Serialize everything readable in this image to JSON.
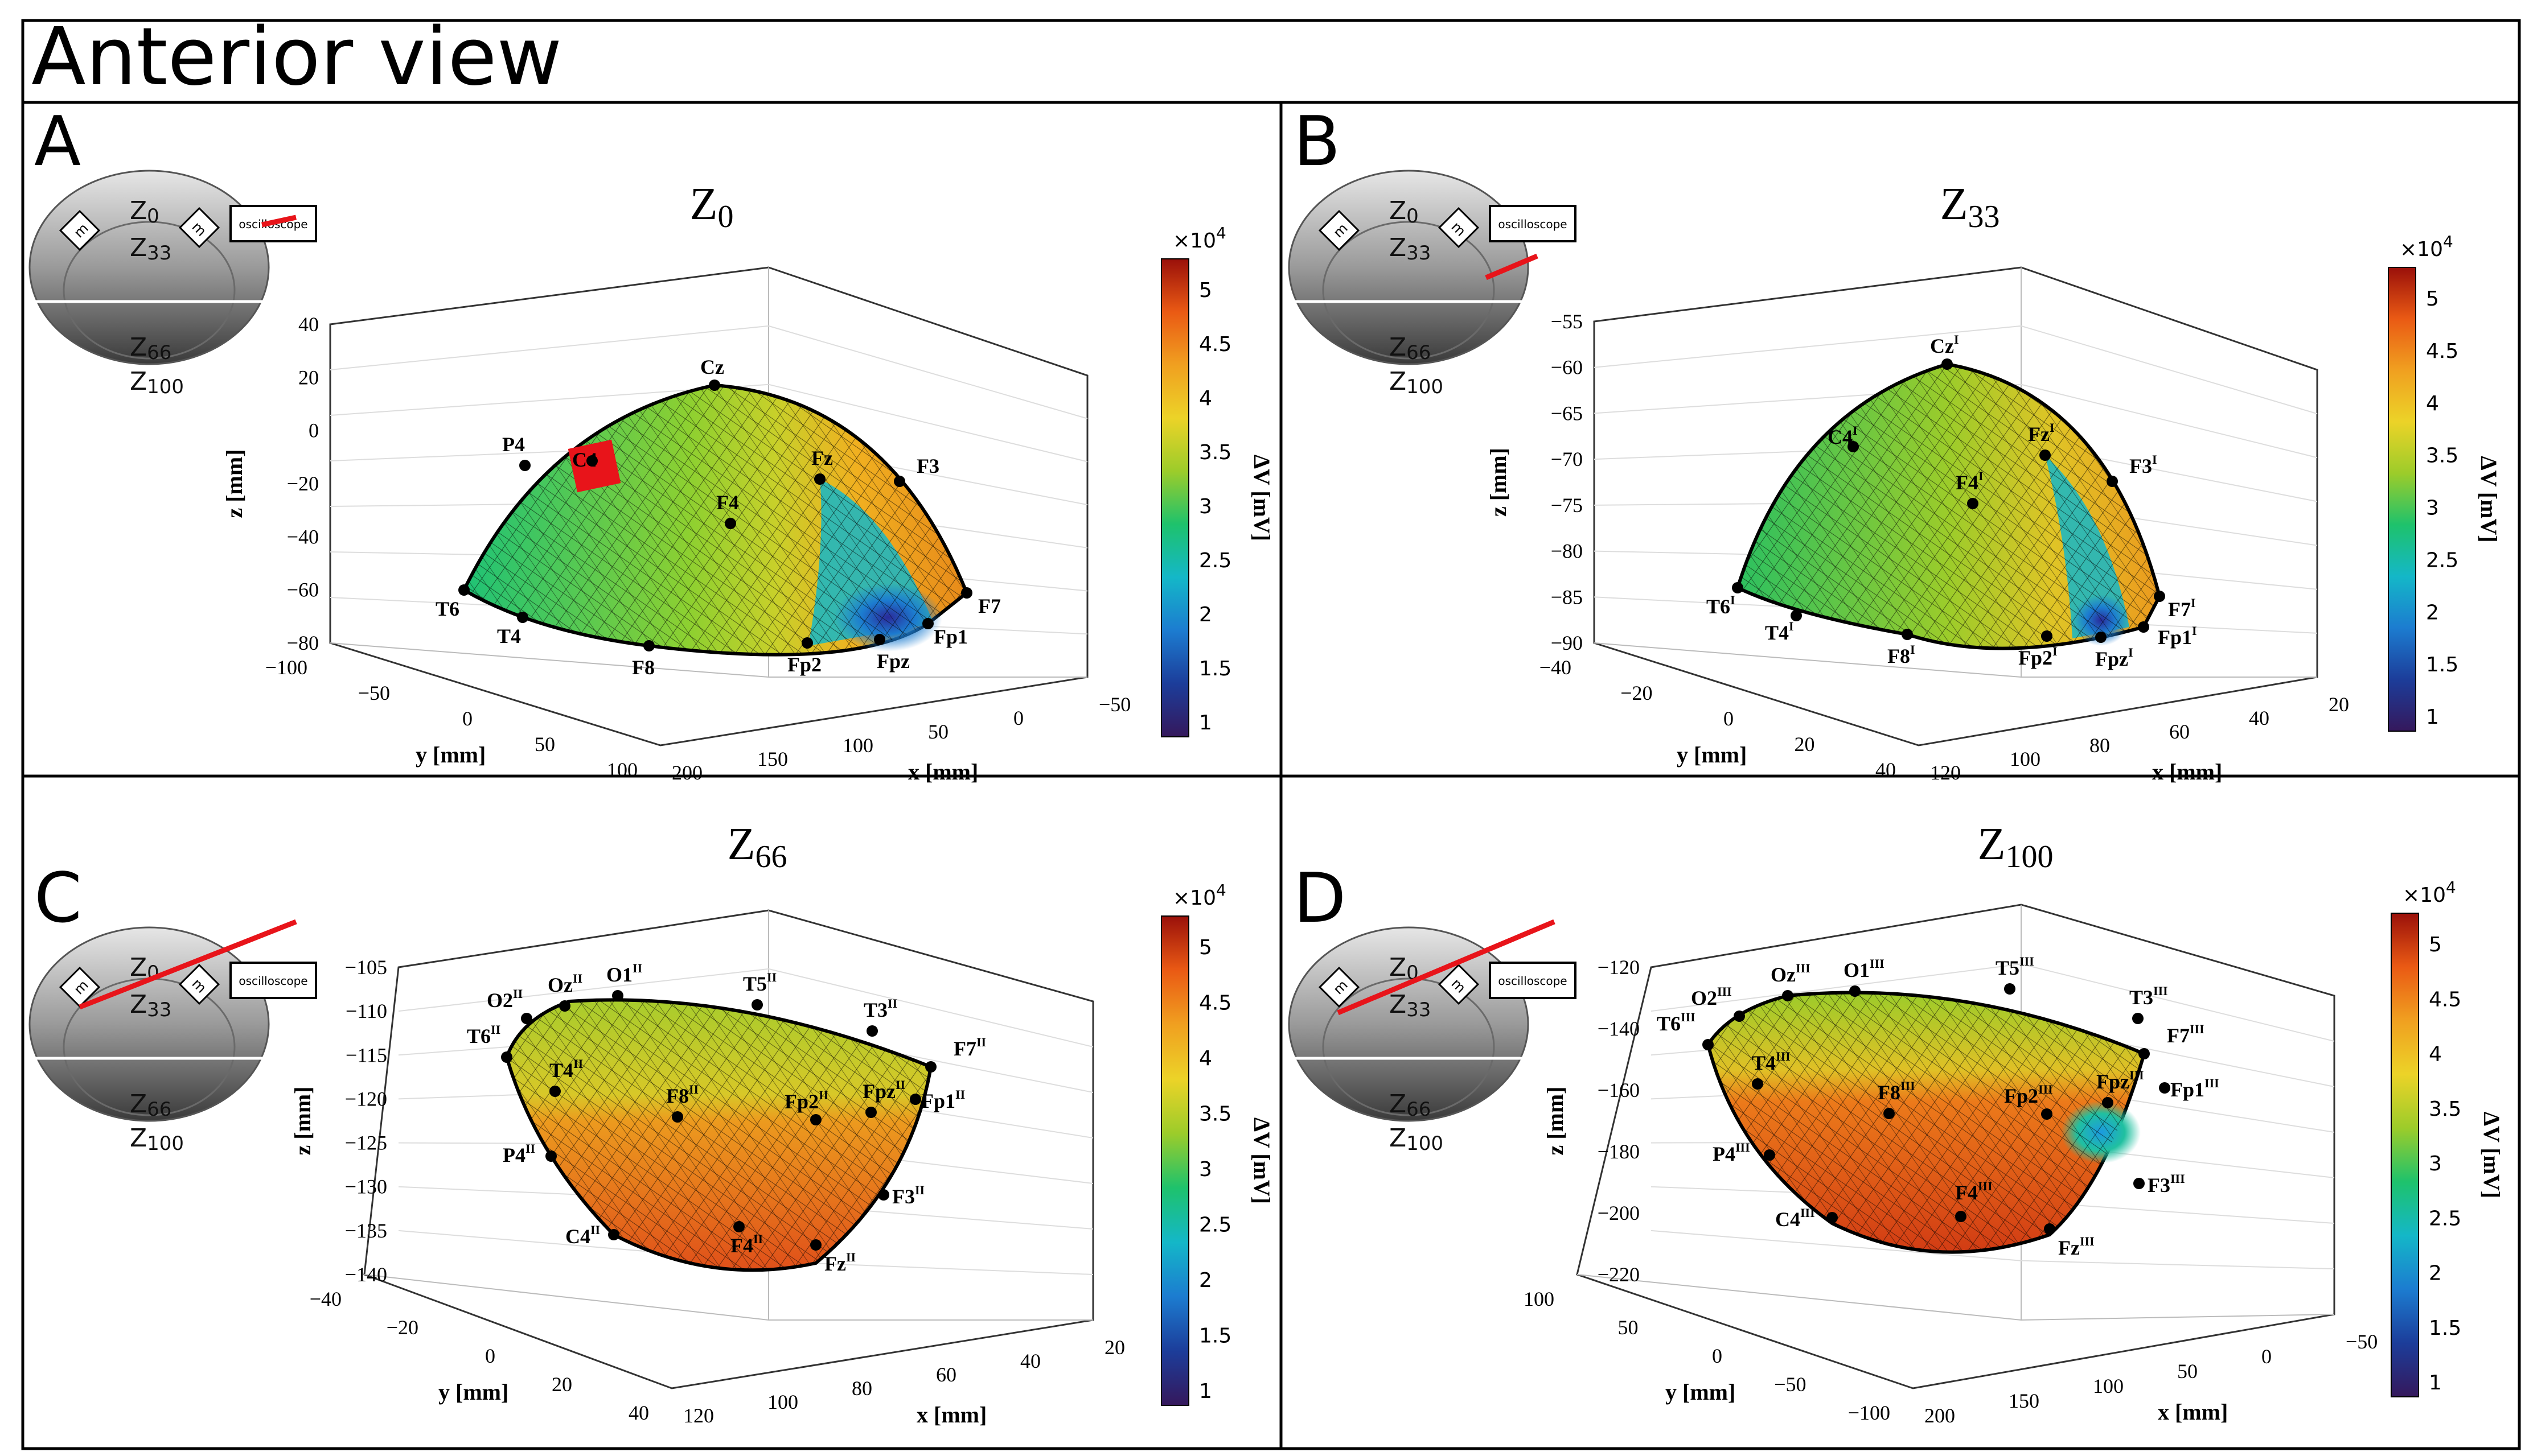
{
  "figure_title": "Anterior view",
  "inset": {
    "layer_labels": [
      "Z",
      "Z",
      "Z",
      "Z"
    ],
    "layer_subs": [
      "0",
      "33",
      "66",
      "100"
    ],
    "box_label": "oscilloscope",
    "electrode_glyph": "m"
  },
  "colorbar": {
    "multiplier_base": "×10",
    "multiplier_exp": "4",
    "label": "ΔV [mV]",
    "ticks": [
      "1",
      "1.5",
      "2",
      "2.5",
      "3",
      "3.5",
      "4",
      "4.5",
      "5"
    ],
    "colors": [
      "#35185c",
      "#1c3d9a",
      "#1c7cd0",
      "#14b7c8",
      "#1ec26c",
      "#9ccc2a",
      "#ecd328",
      "#f0a020",
      "#ea5a14",
      "#9a100a"
    ]
  },
  "chart_data": [
    {
      "panel": "A",
      "type": "surface3d",
      "title_base": "Z",
      "title_sub": "0",
      "xlabel": "x [mm]",
      "ylabel": "y [mm]",
      "zlabel": "z [mm]",
      "x_ticks": [
        "200",
        "150",
        "100",
        "50",
        "0",
        "−50"
      ],
      "y_ticks": [
        "−100",
        "−50",
        "0",
        "50",
        "100"
      ],
      "z_ticks": [
        "40",
        "20",
        "0",
        "−20",
        "−40",
        "−60",
        "−80"
      ],
      "shape": "dome",
      "electrodes": [
        {
          "base": "Cz",
          "sup": ""
        },
        {
          "base": "P4",
          "sup": ""
        },
        {
          "base": "C4",
          "sup": ""
        },
        {
          "base": "Fz",
          "sup": ""
        },
        {
          "base": "F3",
          "sup": ""
        },
        {
          "base": "F4",
          "sup": ""
        },
        {
          "base": "T6",
          "sup": ""
        },
        {
          "base": "T4",
          "sup": ""
        },
        {
          "base": "F8",
          "sup": ""
        },
        {
          "base": "Fp2",
          "sup": ""
        },
        {
          "base": "Fpz",
          "sup": ""
        },
        {
          "base": "Fp1",
          "sup": ""
        },
        {
          "base": "F7",
          "sup": ""
        }
      ]
    },
    {
      "panel": "B",
      "type": "surface3d",
      "title_base": "Z",
      "title_sub": "33",
      "xlabel": "x [mm]",
      "ylabel": "y [mm]",
      "zlabel": "z [mm]",
      "x_ticks": [
        "120",
        "100",
        "80",
        "60",
        "40",
        "20"
      ],
      "y_ticks": [
        "−40",
        "−20",
        "0",
        "20",
        "40"
      ],
      "z_ticks": [
        "−55",
        "−60",
        "−65",
        "−70",
        "−75",
        "−80",
        "−85",
        "−90"
      ],
      "shape": "dome",
      "electrodes": [
        {
          "base": "Cz",
          "sup": "I"
        },
        {
          "base": "C4",
          "sup": "I"
        },
        {
          "base": "Fz",
          "sup": "I"
        },
        {
          "base": "F3",
          "sup": "I"
        },
        {
          "base": "F4",
          "sup": "I"
        },
        {
          "base": "T6",
          "sup": "I"
        },
        {
          "base": "T4",
          "sup": "I"
        },
        {
          "base": "F8",
          "sup": "I"
        },
        {
          "base": "Fp2",
          "sup": "I"
        },
        {
          "base": "Fpz",
          "sup": "I"
        },
        {
          "base": "Fp1",
          "sup": "I"
        },
        {
          "base": "F7",
          "sup": "I"
        }
      ]
    },
    {
      "panel": "C",
      "type": "surface3d",
      "title_base": "Z",
      "title_sub": "66",
      "xlabel": "x [mm]",
      "ylabel": "y [mm]",
      "zlabel": "z [mm]",
      "x_ticks": [
        "120",
        "100",
        "80",
        "60",
        "40",
        "20"
      ],
      "y_ticks": [
        "−40",
        "−20",
        "0",
        "20",
        "40"
      ],
      "z_ticks": [
        "−105",
        "−110",
        "−115",
        "−120",
        "−125",
        "−130",
        "−135",
        "−140"
      ],
      "shape": "bowl",
      "electrodes": [
        {
          "base": "O2",
          "sup": "II"
        },
        {
          "base": "Oz",
          "sup": "II"
        },
        {
          "base": "O1",
          "sup": "II"
        },
        {
          "base": "T5",
          "sup": "II"
        },
        {
          "base": "T3",
          "sup": "II"
        },
        {
          "base": "F7",
          "sup": "II"
        },
        {
          "base": "T6",
          "sup": "II"
        },
        {
          "base": "T4",
          "sup": "II"
        },
        {
          "base": "F8",
          "sup": "II"
        },
        {
          "base": "Fp2",
          "sup": "II"
        },
        {
          "base": "Fpz",
          "sup": "II"
        },
        {
          "base": "Fp1",
          "sup": "II"
        },
        {
          "base": "P4",
          "sup": "II"
        },
        {
          "base": "F3",
          "sup": "II"
        },
        {
          "base": "C4",
          "sup": "II"
        },
        {
          "base": "F4",
          "sup": "II"
        },
        {
          "base": "Fz",
          "sup": "II"
        }
      ]
    },
    {
      "panel": "D",
      "type": "surface3d",
      "title_base": "Z",
      "title_sub": "100",
      "xlabel": "x [mm]",
      "ylabel": "y [mm]",
      "zlabel": "z [mm]",
      "x_ticks": [
        "200",
        "150",
        "100",
        "50",
        "0",
        "−50"
      ],
      "y_ticks": [
        "100",
        "50",
        "0",
        "−50",
        "−100"
      ],
      "z_ticks": [
        "−120",
        "−140",
        "−160",
        "−180",
        "−200",
        "−220"
      ],
      "shape": "bowl",
      "electrodes": [
        {
          "base": "O2",
          "sup": "III"
        },
        {
          "base": "Oz",
          "sup": "III"
        },
        {
          "base": "O1",
          "sup": "III"
        },
        {
          "base": "T5",
          "sup": "III"
        },
        {
          "base": "T3",
          "sup": "III"
        },
        {
          "base": "F7",
          "sup": "III"
        },
        {
          "base": "T6",
          "sup": "III"
        },
        {
          "base": "T4",
          "sup": "III"
        },
        {
          "base": "F8",
          "sup": "III"
        },
        {
          "base": "Fp2",
          "sup": "III"
        },
        {
          "base": "Fpz",
          "sup": "III"
        },
        {
          "base": "Fp1",
          "sup": "III"
        },
        {
          "base": "P4",
          "sup": "III"
        },
        {
          "base": "F3",
          "sup": "III"
        },
        {
          "base": "F4",
          "sup": "III"
        },
        {
          "base": "C4",
          "sup": "III"
        },
        {
          "base": "Fz",
          "sup": "III"
        }
      ]
    }
  ]
}
